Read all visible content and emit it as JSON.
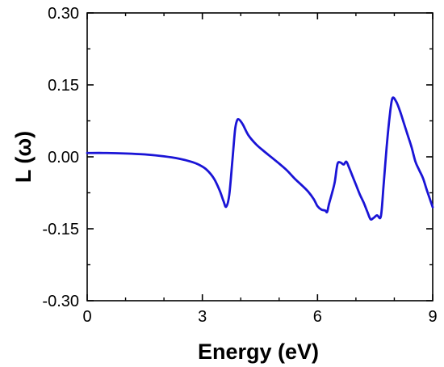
{
  "chart_data": {
    "type": "line",
    "title": "",
    "xlabel": "Energy (eV)",
    "ylabel": "L (ω)",
    "xlim": [
      0,
      9
    ],
    "ylim": [
      -0.3,
      0.3
    ],
    "grid": false,
    "legend": "none",
    "x_ticks": [
      0,
      3,
      6,
      9
    ],
    "x_tick_labels": [
      "0",
      "3",
      "6",
      "9"
    ],
    "y_ticks": [
      0.3,
      0.15,
      0.0,
      -0.15,
      -0.3
    ],
    "y_tick_labels": [
      "0.30",
      "0.15",
      "0.00",
      "-0.15",
      "-0.30"
    ],
    "series": [
      {
        "color": "#1a14d6",
        "x": [
          0.0,
          0.5,
          1.0,
          1.5,
          2.0,
          2.4,
          2.7,
          2.9,
          3.1,
          3.3,
          3.45,
          3.55,
          3.62,
          3.7,
          3.78,
          3.85,
          3.9,
          3.95,
          4.05,
          4.2,
          4.4,
          4.6,
          4.8,
          5.0,
          5.2,
          5.4,
          5.6,
          5.75,
          5.9,
          6.0,
          6.1,
          6.2,
          6.25,
          6.3,
          6.38,
          6.45,
          6.52,
          6.6,
          6.68,
          6.75,
          6.82,
          6.9,
          7.0,
          7.1,
          7.2,
          7.3,
          7.38,
          7.45,
          7.55,
          7.65,
          7.72,
          7.8,
          7.88,
          7.95,
          8.05,
          8.15,
          8.25,
          8.35,
          8.45,
          8.55,
          8.65,
          8.75,
          8.85,
          9.0
        ],
        "y": [
          0.008,
          0.008,
          0.007,
          0.005,
          0.001,
          -0.004,
          -0.01,
          -0.016,
          -0.026,
          -0.045,
          -0.07,
          -0.092,
          -0.104,
          -0.08,
          -0.01,
          0.055,
          0.075,
          0.078,
          0.068,
          0.045,
          0.026,
          0.012,
          -0.001,
          -0.014,
          -0.028,
          -0.045,
          -0.06,
          -0.072,
          -0.088,
          -0.103,
          -0.11,
          -0.112,
          -0.115,
          -0.098,
          -0.075,
          -0.052,
          -0.015,
          -0.012,
          -0.016,
          -0.01,
          -0.022,
          -0.038,
          -0.058,
          -0.078,
          -0.095,
          -0.115,
          -0.13,
          -0.128,
          -0.122,
          -0.124,
          -0.06,
          0.02,
          0.085,
          0.122,
          0.115,
          0.095,
          0.07,
          0.045,
          0.02,
          -0.01,
          -0.028,
          -0.045,
          -0.07,
          -0.105
        ]
      }
    ]
  }
}
